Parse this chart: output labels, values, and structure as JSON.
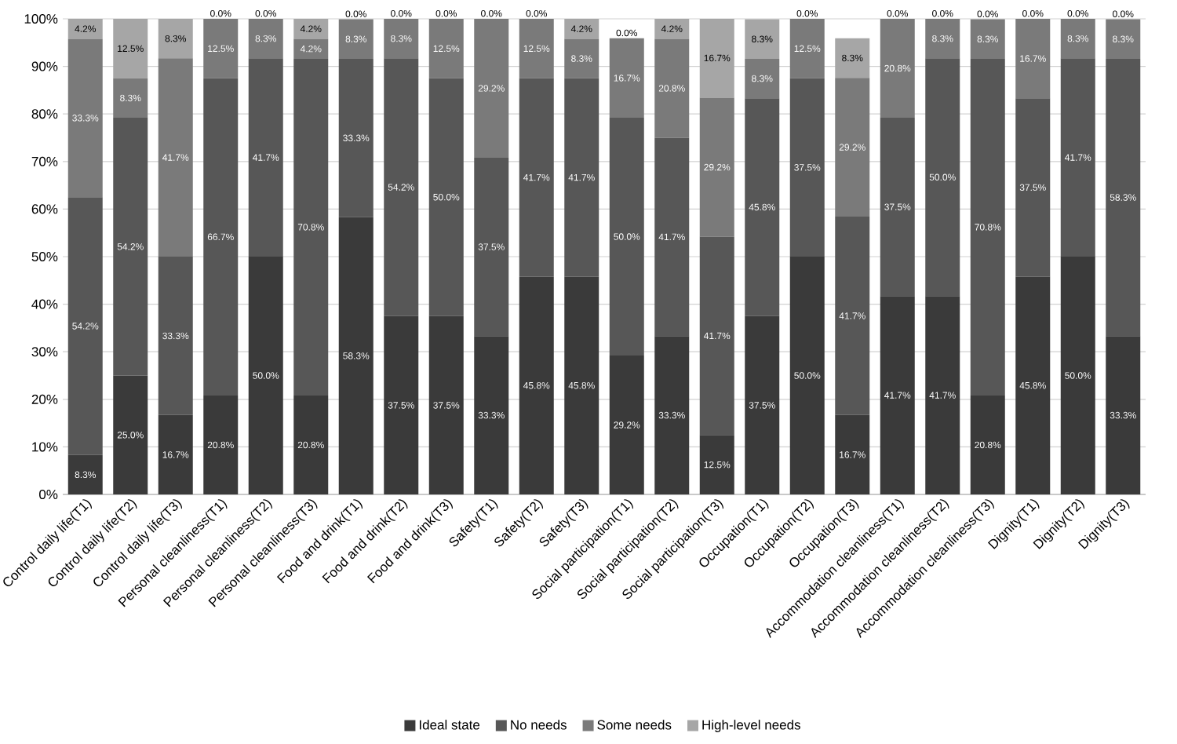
{
  "chart_data": {
    "type": "bar",
    "stacked": true,
    "categories": [
      "Control daily life(T1)",
      "Control daily life(T2)",
      "Control daily life(T3)",
      "Personal cleanliness(T1)",
      "Personal cleanliness(T2)",
      "Personal cleanliness(T3)",
      "Food and drink(T1)",
      "Food and drink(T2)",
      "Food and drink(T3)",
      "Safety(T1)",
      "Safety(T2)",
      "Safety(T3)",
      "Social participation(T1)",
      "Social participation(T2)",
      "Social participation(T3)",
      "Occupation(T1)",
      "Occupation(T2)",
      "Occupation(T3)",
      "Accommodation cleanliness(T1)",
      "Accommodation cleanliness(T2)",
      "Accommodation cleanliness(T3)",
      "Dignity(T1)",
      "Dignity(T2)",
      "Dignity(T3)"
    ],
    "series": [
      {
        "name": "Ideal state",
        "color": "#3a3a3a",
        "values": [
          8.3,
          25.0,
          16.7,
          20.8,
          50.0,
          20.8,
          58.3,
          37.5,
          37.5,
          33.3,
          45.8,
          45.8,
          29.2,
          33.3,
          12.5,
          37.5,
          50.0,
          16.7,
          41.7,
          41.7,
          20.8,
          45.8,
          50.0,
          33.3
        ],
        "value_labels": [
          "8.3%",
          "25.0%",
          "16.7%",
          "20.8%",
          "50.0%",
          "20.8%",
          "58.3%",
          "37.5%",
          "37.5%",
          "33.3%",
          "45.8%",
          "45.8%",
          "29.2%",
          "33.3%",
          "12.5%",
          "37.5%",
          "50.0%",
          "16.7%",
          "41.7%",
          "41.7%",
          "20.8%",
          "45.8%",
          "50.0%",
          "33.3%"
        ]
      },
      {
        "name": "No needs",
        "color": "#575757",
        "values": [
          54.2,
          54.2,
          33.3,
          66.7,
          41.7,
          70.8,
          33.3,
          54.2,
          50.0,
          37.5,
          41.7,
          41.7,
          50.0,
          41.7,
          41.7,
          45.8,
          37.5,
          41.7,
          37.5,
          50.0,
          70.8,
          37.5,
          41.7,
          58.3
        ],
        "value_labels": [
          "54.2%",
          "54.2%",
          "33.3%",
          "66.7%",
          "41.7%",
          "70.8%",
          "33.3%",
          "54.2%",
          "50.0%",
          "37.5%",
          "41.7%",
          "41.7%",
          "50.0%",
          "41.7%",
          "41.7%",
          "45.8%",
          "37.5%",
          "41.7%",
          "37.5%",
          "50.0%",
          "70.8%",
          "37.5%",
          "41.7%",
          "58.3%"
        ]
      },
      {
        "name": "Some needs",
        "color": "#7a7a7a",
        "values": [
          33.3,
          8.3,
          41.7,
          12.5,
          8.3,
          4.2,
          8.3,
          8.3,
          12.5,
          29.2,
          12.5,
          8.3,
          16.7,
          20.8,
          29.2,
          8.3,
          12.5,
          29.2,
          20.8,
          8.3,
          8.3,
          16.7,
          8.3,
          8.3
        ],
        "value_labels": [
          "33.3%",
          "8.3%",
          "41.7%",
          "12.5%",
          "8.3%",
          "4.2%",
          "8.3%",
          "8.3%",
          "12.5%",
          "29.2%",
          "12.5%",
          "8.3%",
          "16.7%",
          "20.8%",
          "29.2%",
          "8.3%",
          "12.5%",
          "29.2%",
          "20.8%",
          "8.3%",
          "8.3%",
          "16.7%",
          "8.3%",
          "8.3%"
        ]
      },
      {
        "name": "High-level needs",
        "color": "#a6a6a6",
        "values": [
          4.2,
          12.5,
          8.3,
          0.0,
          0.0,
          4.2,
          0.0,
          0.0,
          0.0,
          0.0,
          0.0,
          4.2,
          0.0,
          4.2,
          16.7,
          8.3,
          0.0,
          8.3,
          0.0,
          0.0,
          0.0,
          0.0,
          0.0,
          0.0
        ],
        "value_labels": [
          "4.2%",
          "12.5%",
          "8.3%",
          "0.0%",
          "0.0%",
          "4.2%",
          "0.0%",
          "0.0%",
          "0.0%",
          "0.0%",
          "0.0%",
          "4.2%",
          "0.0%",
          "4.2%",
          "16.7%",
          "8.3%",
          "0.0%",
          "8.3%",
          "0.0%",
          "0.0%",
          "0.0%",
          "0.0%",
          "0.0%",
          "0.0%"
        ]
      }
    ],
    "ylim": [
      0,
      100
    ],
    "yticks": [
      {
        "value": 0,
        "label": "0%"
      },
      {
        "value": 10,
        "label": "10%"
      },
      {
        "value": 20,
        "label": "20%"
      },
      {
        "value": 30,
        "label": "30%"
      },
      {
        "value": 40,
        "label": "40%"
      },
      {
        "value": 50,
        "label": "50%"
      },
      {
        "value": 60,
        "label": "60%"
      },
      {
        "value": 70,
        "label": "70%"
      },
      {
        "value": 80,
        "label": "80%"
      },
      {
        "value": 90,
        "label": "90%"
      },
      {
        "value": 100,
        "label": "100%"
      }
    ],
    "grid": "y",
    "legend": "bottom"
  }
}
